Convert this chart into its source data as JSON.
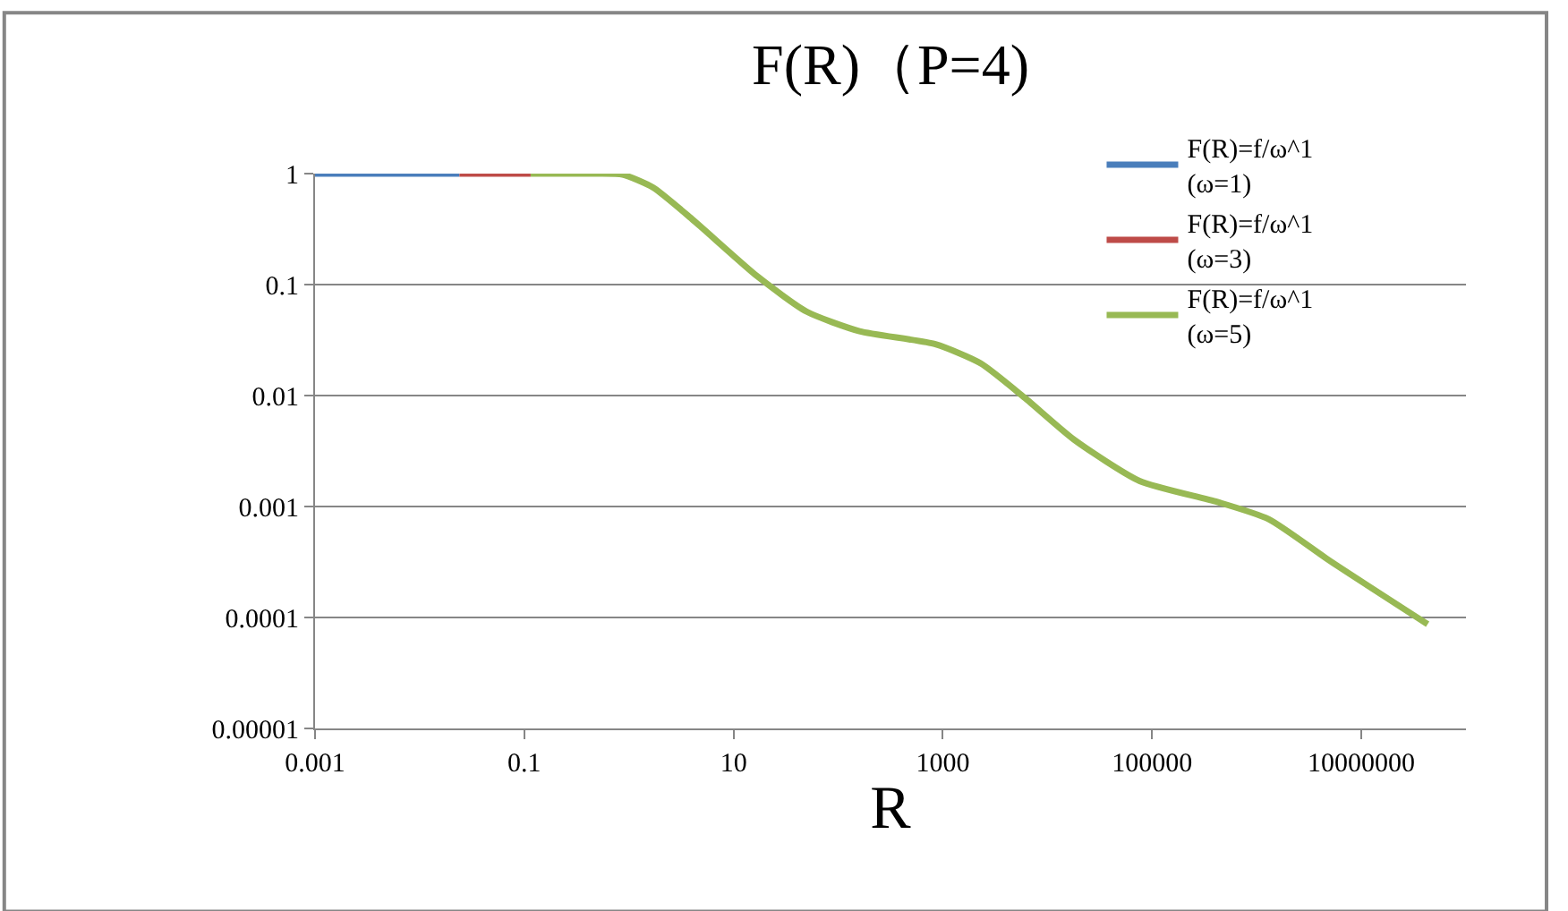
{
  "chart_data": {
    "type": "line",
    "title": "F(R)（P=4)",
    "xlabel": "R",
    "xlim": [
      0.001,
      100000000
    ],
    "xticks": [
      0.001,
      0.1,
      10,
      1000,
      100000,
      10000000
    ],
    "ylim": [
      1e-05,
      1
    ],
    "yticks": [
      {
        "value": 1e-05,
        "label": "0.00001"
      },
      0.0001,
      0.001,
      0.01,
      0.1,
      1
    ],
    "log": "xy",
    "grid": "y",
    "legend": "top right",
    "marker": "none",
    "line_style": "solid",
    "series": [
      {
        "name": "F(R)=f/ω^1 (ω=1)",
        "color": "#4a7ebb",
        "x": [
          0.001,
          0.024
        ],
        "values": [
          1,
          1
        ]
      },
      {
        "name": "F(R)=f/ω^1 (ω=3)",
        "color": "#be4b48",
        "x": [
          0.024,
          0.115
        ],
        "values": [
          1,
          1
        ]
      },
      {
        "name": "F(R)=f/ω^1 (ω=5)",
        "color": "#98b954",
        "x": [
          0.115,
          0.5,
          0.87,
          1.7,
          4,
          17,
          50,
          160,
          850,
          2300,
          6100,
          18000,
          76000,
          420000,
          1300000,
          5100000,
          43000000
        ],
        "values": [
          1,
          1,
          0.98,
          0.75,
          0.39,
          0.118,
          0.057,
          0.038,
          0.029,
          0.0195,
          0.0095,
          0.004,
          0.0017,
          0.0011,
          0.00077,
          0.00032,
          8.7e-05
        ]
      }
    ]
  }
}
